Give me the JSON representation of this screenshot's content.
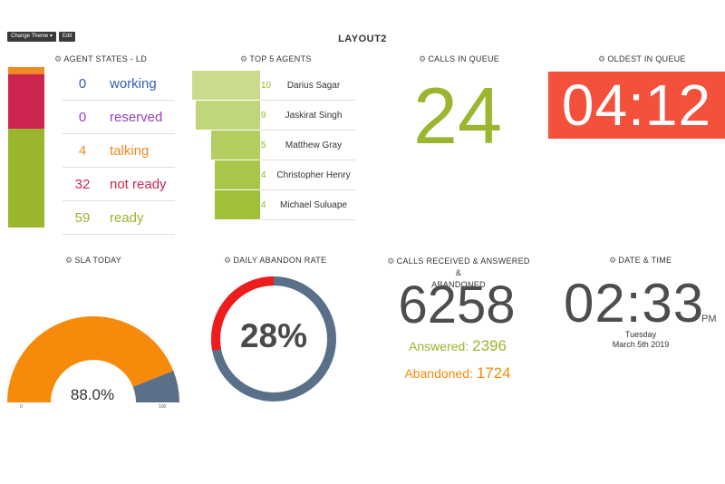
{
  "toolbar": {
    "change_theme": "Change Theme ▾",
    "edit": "Edit"
  },
  "layout_title": "LAYOUT2",
  "agent_states": {
    "title": "AGENT STATES - LD",
    "rows": [
      {
        "value": "0",
        "label": "working",
        "color": "#2f5fb3"
      },
      {
        "value": "0",
        "label": "reserved",
        "color": "#9b3fc0"
      },
      {
        "value": "4",
        "label": "talking",
        "color": "#f08a24"
      },
      {
        "value": "32",
        "label": "not ready",
        "color": "#cc2650"
      },
      {
        "value": "59",
        "label": "ready",
        "color": "#9ab52e"
      }
    ]
  },
  "top_agents": {
    "title": "TOP 5 AGENTS",
    "rows": [
      {
        "count": "10",
        "name": "Darius Sagar",
        "color": "#c9dc8c"
      },
      {
        "count": "9",
        "name": "Jaskirat Singh",
        "color": "#c0d67b"
      },
      {
        "count": "5",
        "name": "Matthew Gray",
        "color": "#b4ce5f"
      },
      {
        "count": "4",
        "name": "Christopher Henry",
        "color": "#a9c64a"
      },
      {
        "count": "4",
        "name": "Michael Suluape",
        "color": "#a0c03a"
      }
    ]
  },
  "calls_in_queue": {
    "title": "CALLS IN QUEUE",
    "value": "24",
    "color": "#9ab52e"
  },
  "oldest_in_queue": {
    "title": "OLDEST IN QUEUE",
    "value": "04:12",
    "color": "#f4513c"
  },
  "sla_today": {
    "title": "SLA TODAY",
    "value": "88.0%",
    "fraction": 0.88,
    "min_label": "0",
    "max_label": "100",
    "fill_color": "#f58a0b",
    "rest_color": "#5a7088"
  },
  "abandon_rate": {
    "title": "DAILY ABANDON RATE",
    "value": "28%",
    "fraction": 0.28,
    "accent_color": "#ee1c1c",
    "rest_color": "#5a7088"
  },
  "calls_summary": {
    "title_line1": "CALLS RECEIVED & ANSWERED &",
    "title_line2": "ABANDONED",
    "total": "6258",
    "answered_label": "Answered:",
    "answered_value": "2396",
    "answered_color": "#9ab52e",
    "abandoned_label": "Abandoned:",
    "abandoned_value": "1724",
    "abandoned_color": "#f58a0b"
  },
  "date_time": {
    "title": "DATE & TIME",
    "time": "02:33",
    "ampm": "PM",
    "weekday": "Tuesday",
    "date": "March 5th 2019"
  }
}
